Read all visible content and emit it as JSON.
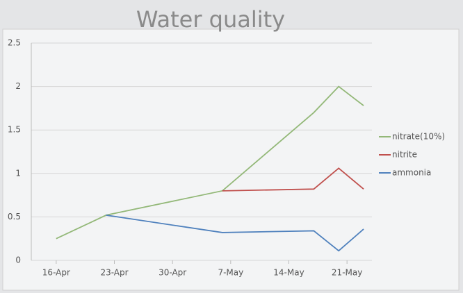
{
  "chart_data": {
    "type": "line",
    "title": "Water quality",
    "x": [
      "16-Apr",
      "22-Apr",
      "6-May",
      "17-May",
      "20-May",
      "23-May"
    ],
    "series": [
      {
        "name": "nitrate(10%)",
        "color": "#93b878",
        "values": [
          0.25,
          0.52,
          0.8,
          1.7,
          2.0,
          1.78
        ]
      },
      {
        "name": "nitrite",
        "color": "#c0504d",
        "values": [
          null,
          null,
          0.8,
          0.82,
          1.06,
          0.82
        ]
      },
      {
        "name": "ammonia",
        "color": "#4f81bd",
        "values": [
          null,
          0.52,
          0.32,
          0.34,
          0.11,
          0.36
        ]
      }
    ],
    "xlim": [
      "13-Apr",
      "24-May"
    ],
    "xticks": [
      "16-Apr",
      "23-Apr",
      "30-Apr",
      "7-May",
      "14-May",
      "21-May"
    ],
    "ylim": [
      0,
      2.5
    ],
    "yticks": [
      0,
      0.5,
      1,
      1.5,
      2,
      2.5
    ],
    "grid": true,
    "legend": "right"
  }
}
